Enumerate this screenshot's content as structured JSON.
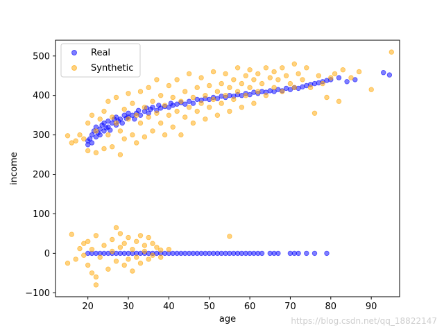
{
  "chart_data": {
    "type": "scatter",
    "title": "",
    "xlabel": "age",
    "ylabel": "income",
    "xlim": [
      12,
      97
    ],
    "ylim": [
      -110,
      540
    ],
    "xticks": [
      20,
      30,
      40,
      50,
      60,
      70,
      80,
      90
    ],
    "yticks": [
      -100,
      0,
      100,
      200,
      300,
      400,
      500
    ],
    "grid": false,
    "legend_position": "top-left",
    "series": [
      {
        "name": "Real",
        "color": "#0000ff",
        "points": [
          [
            20,
            285
          ],
          [
            20,
            275
          ],
          [
            20.5,
            290
          ],
          [
            21,
            300
          ],
          [
            21,
            280
          ],
          [
            21.5,
            310
          ],
          [
            22,
            295
          ],
          [
            22,
            320
          ],
          [
            22.5,
            305
          ],
          [
            23,
            315
          ],
          [
            23,
            300
          ],
          [
            23.5,
            325
          ],
          [
            24,
            310
          ],
          [
            24,
            330
          ],
          [
            24.5,
            318
          ],
          [
            25,
            320
          ],
          [
            25,
            335
          ],
          [
            25.5,
            312
          ],
          [
            26,
            330
          ],
          [
            26.5,
            340
          ],
          [
            27,
            325
          ],
          [
            27,
            345
          ],
          [
            27.5,
            335
          ],
          [
            28,
            340
          ],
          [
            28.5,
            330
          ],
          [
            29,
            350
          ],
          [
            29.5,
            342
          ],
          [
            30,
            345
          ],
          [
            30,
            355
          ],
          [
            31,
            350
          ],
          [
            31.5,
            340
          ],
          [
            32,
            355
          ],
          [
            32.5,
            362
          ],
          [
            33,
            350
          ],
          [
            34,
            360
          ],
          [
            34.5,
            368
          ],
          [
            35,
            355
          ],
          [
            35.5,
            365
          ],
          [
            36,
            370
          ],
          [
            37,
            362
          ],
          [
            37.5,
            375
          ],
          [
            38,
            368
          ],
          [
            39,
            372
          ],
          [
            40,
            370
          ],
          [
            40.5,
            380
          ],
          [
            41,
            375
          ],
          [
            42,
            378
          ],
          [
            43,
            382
          ],
          [
            44,
            378
          ],
          [
            45,
            385
          ],
          [
            46,
            380
          ],
          [
            47,
            390
          ],
          [
            48,
            388
          ],
          [
            49,
            392
          ],
          [
            50,
            390
          ],
          [
            51,
            395
          ],
          [
            52,
            392
          ],
          [
            53,
            398
          ],
          [
            54,
            395
          ],
          [
            55,
            400
          ],
          [
            56,
            398
          ],
          [
            57,
            402
          ],
          [
            58,
            400
          ],
          [
            59,
            405
          ],
          [
            60,
            402
          ],
          [
            61,
            408
          ],
          [
            62,
            405
          ],
          [
            63,
            410
          ],
          [
            64,
            408
          ],
          [
            65,
            412
          ],
          [
            66,
            410
          ],
          [
            67,
            415
          ],
          [
            68,
            412
          ],
          [
            69,
            418
          ],
          [
            70,
            415
          ],
          [
            71,
            420
          ],
          [
            72,
            418
          ],
          [
            73,
            422
          ],
          [
            74,
            425
          ],
          [
            75,
            428
          ],
          [
            76,
            430
          ],
          [
            77,
            432
          ],
          [
            78,
            435
          ],
          [
            79,
            438
          ],
          [
            80,
            440
          ],
          [
            82,
            445
          ],
          [
            84,
            435
          ],
          [
            86,
            440
          ],
          [
            93,
            458
          ],
          [
            94.5,
            452
          ],
          [
            20,
            0
          ],
          [
            21,
            0
          ],
          [
            22,
            0
          ],
          [
            23,
            0
          ],
          [
            24,
            0
          ],
          [
            25,
            0
          ],
          [
            26,
            0
          ],
          [
            27,
            0
          ],
          [
            28,
            0
          ],
          [
            29,
            0
          ],
          [
            30,
            0
          ],
          [
            31,
            0
          ],
          [
            32,
            0
          ],
          [
            33,
            0
          ],
          [
            34,
            0
          ],
          [
            35,
            0
          ],
          [
            36,
            0
          ],
          [
            37,
            0
          ],
          [
            38,
            0
          ],
          [
            39,
            0
          ],
          [
            40,
            0
          ],
          [
            41,
            0
          ],
          [
            42,
            0
          ],
          [
            43,
            0
          ],
          [
            44,
            0
          ],
          [
            45,
            0
          ],
          [
            46,
            0
          ],
          [
            47,
            0
          ],
          [
            48,
            0
          ],
          [
            49,
            0
          ],
          [
            50,
            0
          ],
          [
            51,
            0
          ],
          [
            52,
            0
          ],
          [
            53,
            0
          ],
          [
            54,
            0
          ],
          [
            55,
            0
          ],
          [
            56,
            0
          ],
          [
            57,
            0
          ],
          [
            58,
            0
          ],
          [
            59,
            0
          ],
          [
            60,
            0
          ],
          [
            61,
            0
          ],
          [
            62,
            0
          ],
          [
            63,
            0
          ],
          [
            65,
            0
          ],
          [
            66,
            0
          ],
          [
            67,
            0
          ],
          [
            70,
            0
          ],
          [
            71,
            0
          ],
          [
            72,
            0
          ],
          [
            74,
            0
          ],
          [
            76,
            0
          ],
          [
            79,
            0
          ]
        ]
      },
      {
        "name": "Synthetic",
        "color": "#ffa500",
        "points": [
          [
            15,
            298
          ],
          [
            16,
            280
          ],
          [
            17,
            285
          ],
          [
            18,
            300
          ],
          [
            19,
            290
          ],
          [
            20,
            330
          ],
          [
            20,
            260
          ],
          [
            21,
            350
          ],
          [
            22,
            255
          ],
          [
            22,
            310
          ],
          [
            23,
            340
          ],
          [
            24,
            265
          ],
          [
            24,
            360
          ],
          [
            25,
            300
          ],
          [
            25,
            385
          ],
          [
            26,
            345
          ],
          [
            26,
            270
          ],
          [
            27,
            330
          ],
          [
            27,
            395
          ],
          [
            28,
            310
          ],
          [
            28,
            250
          ],
          [
            29,
            365
          ],
          [
            29,
            290
          ],
          [
            30,
            340
          ],
          [
            30,
            405
          ],
          [
            31,
            300
          ],
          [
            31,
            380
          ],
          [
            32,
            350
          ],
          [
            32,
            280
          ],
          [
            33,
            410
          ],
          [
            33,
            330
          ],
          [
            34,
            370
          ],
          [
            34,
            295
          ],
          [
            35,
            345
          ],
          [
            35,
            420
          ],
          [
            36,
            385
          ],
          [
            36,
            310
          ],
          [
            37,
            355
          ],
          [
            37,
            440
          ],
          [
            38,
            330
          ],
          [
            38,
            400
          ],
          [
            39,
            375
          ],
          [
            39,
            300
          ],
          [
            40,
            350
          ],
          [
            40,
            425
          ],
          [
            41,
            395
          ],
          [
            41,
            320
          ],
          [
            42,
            360
          ],
          [
            42,
            440
          ],
          [
            43,
            385
          ],
          [
            43,
            300
          ],
          [
            44,
            410
          ],
          [
            44,
            345
          ],
          [
            45,
            370
          ],
          [
            45,
            455
          ],
          [
            46,
            395
          ],
          [
            46,
            330
          ],
          [
            47,
            420
          ],
          [
            47,
            360
          ],
          [
            48,
            380
          ],
          [
            48,
            445
          ],
          [
            49,
            400
          ],
          [
            49,
            340
          ],
          [
            50,
            425
          ],
          [
            50,
            370
          ],
          [
            51,
            390
          ],
          [
            51,
            460
          ],
          [
            52,
            410
          ],
          [
            52,
            350
          ],
          [
            53,
            430
          ],
          [
            53,
            380
          ],
          [
            54,
            400
          ],
          [
            54,
            455
          ],
          [
            55,
            420
          ],
          [
            55,
            360
          ],
          [
            56,
            440
          ],
          [
            56,
            390
          ],
          [
            57,
            410
          ],
          [
            57,
            470
          ],
          [
            58,
            430
          ],
          [
            58,
            370
          ],
          [
            59,
            450
          ],
          [
            59,
            400
          ],
          [
            60,
            420
          ],
          [
            60,
            465
          ],
          [
            61,
            440
          ],
          [
            61,
            380
          ],
          [
            62,
            455
          ],
          [
            62,
            410
          ],
          [
            63,
            430
          ],
          [
            64,
            470
          ],
          [
            64,
            400
          ],
          [
            65,
            445
          ],
          [
            66,
            420
          ],
          [
            66,
            460
          ],
          [
            67,
            440
          ],
          [
            68,
            470
          ],
          [
            68,
            410
          ],
          [
            69,
            450
          ],
          [
            70,
            430
          ],
          [
            71,
            480
          ],
          [
            71,
            420
          ],
          [
            72,
            455
          ],
          [
            73,
            440
          ],
          [
            74,
            470
          ],
          [
            75,
            420
          ],
          [
            76,
            355
          ],
          [
            77,
            450
          ],
          [
            78,
            430
          ],
          [
            79,
            395
          ],
          [
            80,
            445
          ],
          [
            81,
            455
          ],
          [
            82,
            385
          ],
          [
            83,
            465
          ],
          [
            85,
            445
          ],
          [
            87,
            460
          ],
          [
            90,
            415
          ],
          [
            95,
            510
          ],
          [
            15,
            -25
          ],
          [
            16,
            48
          ],
          [
            17,
            -15
          ],
          [
            18,
            12
          ],
          [
            19,
            -5
          ],
          [
            19,
            25
          ],
          [
            20,
            -30
          ],
          [
            20,
            30
          ],
          [
            21,
            -50
          ],
          [
            21,
            10
          ],
          [
            22,
            -80
          ],
          [
            22,
            45
          ],
          [
            22,
            -60
          ],
          [
            23,
            -10
          ],
          [
            24,
            20
          ],
          [
            25,
            -40
          ],
          [
            26,
            5
          ],
          [
            26,
            35
          ],
          [
            27,
            65
          ],
          [
            27,
            -20
          ],
          [
            28,
            15
          ],
          [
            28,
            50
          ],
          [
            29,
            -30
          ],
          [
            29,
            25
          ],
          [
            30,
            -15
          ],
          [
            30,
            40
          ],
          [
            31,
            10
          ],
          [
            31,
            -45
          ],
          [
            32,
            30
          ],
          [
            32,
            -10
          ],
          [
            33,
            45
          ],
          [
            33,
            -25
          ],
          [
            34,
            20
          ],
          [
            34,
            5
          ],
          [
            35,
            40
          ],
          [
            35,
            -15
          ],
          [
            36,
            25
          ],
          [
            36,
            -5
          ],
          [
            37,
            15
          ],
          [
            38,
            8
          ],
          [
            38,
            -10
          ],
          [
            40,
            10
          ],
          [
            55,
            43
          ]
        ]
      }
    ]
  },
  "watermark": "https://blog.csdn.net/qq_18822147"
}
